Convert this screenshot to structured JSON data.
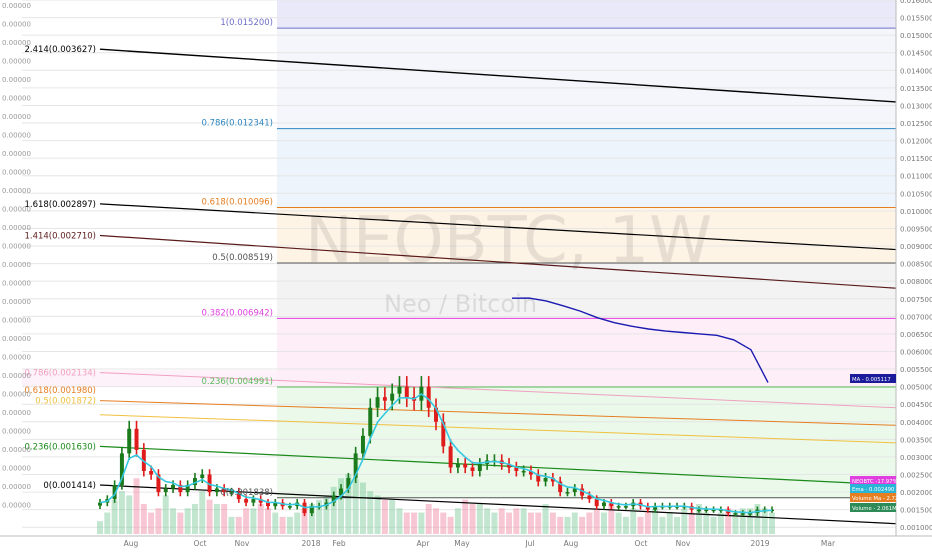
{
  "watermark": {
    "symbol": "NEOBTC, 1W",
    "pair": "Neo / Bitcoin"
  },
  "chart_data": {
    "type": "candlestick",
    "title": "",
    "y_axis_ticks": [
      "0.016000",
      "0.015500",
      "0.015000",
      "0.014500",
      "0.014000",
      "0.013500",
      "0.013000",
      "0.012500",
      "0.012000",
      "0.011500",
      "0.011000",
      "0.010500",
      "0.010000",
      "0.009500",
      "0.009000",
      "0.008500",
      "0.008000",
      "0.007500",
      "0.007000",
      "0.006500",
      "0.006000",
      "0.005500",
      "0.005000",
      "0.004500",
      "0.004000",
      "0.003500",
      "0.003000",
      "0.002500",
      "0.002000",
      "0.001500",
      "0.001000"
    ],
    "left_axis_ticks": [
      "0.00000",
      "0.00000",
      "0.00000",
      "0.00000",
      "0.00000",
      "0.00000",
      "0.00000",
      "0.00000",
      "0.00000",
      "0.00000",
      "0.00000",
      "0.00000",
      "0.00000",
      "0.00000",
      "0.00000",
      "0.00000",
      "0.00000",
      "0.00000",
      "0.00000",
      "0.00000",
      "0.00000",
      "0.00000",
      "0.00000",
      "0.00000",
      "0.00000",
      "0.00000",
      "0.00000",
      "0.00000"
    ],
    "x_axis_ticks": [
      "Aug",
      "Oct",
      "Nov",
      "2018",
      "Feb",
      "Apr",
      "May",
      "Jul",
      "Aug",
      "Oct",
      "Nov",
      "2019",
      "Mar"
    ],
    "fib_right": [
      {
        "label": "1(0.015200)",
        "value": 0.0152,
        "color": "#6e6ec8"
      },
      {
        "label": "0.786(0.012341)",
        "value": 0.012341,
        "color": "#2e86c1"
      },
      {
        "label": "0.618(0.010096)",
        "value": 0.010096,
        "color": "#e67e22"
      },
      {
        "label": "0.5(0.008519)",
        "value": 0.008519,
        "color": "#555555"
      },
      {
        "label": "0.382(0.006942)",
        "value": 0.006942,
        "color": "#e040e0"
      },
      {
        "label": "0.236(0.004991)",
        "value": 0.004991,
        "color": "#5cb85c"
      },
      {
        "label": "0(0.001838)",
        "value": 0.001838,
        "color": "#555555"
      }
    ],
    "fib_left": [
      {
        "label": "2.414(0.003627)",
        "color": "#000000"
      },
      {
        "label": "1.618(0.002897)",
        "color": "#000000"
      },
      {
        "label": "1.414(0.002710)",
        "color": "#5a1a1a"
      },
      {
        "label": "0.786(0.002134)",
        "color": "#f0a0c0"
      },
      {
        "label": "0.618(0.001980)",
        "color": "#e67e22"
      },
      {
        "label": "0.5(0.001872)",
        "color": "#f0c040"
      },
      {
        "label": "0.236(0.001630)",
        "color": "#1a8a1a"
      },
      {
        "label": "0(0.001414)",
        "color": "#000000"
      }
    ],
    "series": [
      {
        "name": "NEOBTC",
        "values": [
          0.0017,
          0.0018,
          0.0022,
          0.0031,
          0.0038,
          0.0032,
          0.0026,
          0.0025,
          0.002,
          0.0021,
          0.0022,
          0.002,
          0.0022,
          0.0024,
          0.0025,
          0.002,
          0.0021,
          0.002,
          0.002,
          0.0018,
          0.0017,
          0.0018,
          0.0017,
          0.0016,
          0.0017,
          0.0016,
          0.0016,
          0.0017,
          0.0014,
          0.0016,
          0.0016,
          0.0017,
          0.0019,
          0.0021,
          0.0024,
          0.0031,
          0.0036,
          0.0044,
          0.0047,
          0.0046,
          0.0048,
          0.005,
          0.0047,
          0.0046,
          0.005,
          0.0044,
          0.004,
          0.0033,
          0.0027,
          0.0028,
          0.0027,
          0.0026,
          0.0028,
          0.0029,
          0.0029,
          0.0028,
          0.0027,
          0.0026,
          0.0026,
          0.0025,
          0.0023,
          0.0024,
          0.0023,
          0.002,
          0.002,
          0.0021,
          0.0019,
          0.0018,
          0.0016,
          0.0017,
          0.0016,
          0.0016,
          0.0016,
          0.0017,
          0.0016,
          0.0015,
          0.0016,
          0.0016,
          0.0016,
          0.0016,
          0.0016,
          0.0015,
          0.0015,
          0.0015,
          0.0015,
          0.0015,
          0.0014,
          0.0014,
          0.0014,
          0.0014,
          0.0015,
          0.0015,
          0.0015
        ]
      },
      {
        "name": "MA",
        "values": [
          0.007517,
          0.00752,
          0.00744,
          0.0073,
          0.00715,
          0.00696,
          0.00682,
          0.00672,
          0.00664,
          0.00658,
          0.00654,
          0.0065,
          0.00646,
          0.00633,
          0.00605,
          0.005117
        ]
      }
    ],
    "price_labels": [
      {
        "name": "NEOBTC",
        "text": "NEOBTC -17.97% - 0.002464",
        "color": "#e040e0"
      },
      {
        "name": "MA",
        "text": "MA - 0.005117",
        "color": "#1a1a9a"
      },
      {
        "name": "EMA",
        "text": "Ema - 0.002490",
        "color": "#29b6d6"
      },
      {
        "name": "Volume MA",
        "text": "Volume Ma - 2.72M",
        "color": "#e67e22"
      },
      {
        "name": "Volume",
        "text": "Volume - 2.061M",
        "color": "#2e8b57"
      }
    ],
    "volume": [
      0.3,
      0.5,
      0.8,
      1.0,
      0.9,
      1.3,
      0.7,
      0.5,
      0.6,
      0.9,
      0.6,
      0.5,
      0.6,
      0.7,
      1.0,
      0.8,
      0.7,
      0.7,
      0.4,
      0.4,
      0.6,
      0.6,
      0.7,
      0.6,
      0.5,
      0.4,
      0.4,
      0.5,
      0.6,
      0.7,
      0.8,
      0.9,
      1.1,
      1.3,
      1.4,
      1.3,
      1.2,
      1.0,
      0.9,
      0.8,
      0.8,
      0.6,
      0.5,
      0.5,
      0.5,
      0.7,
      0.6,
      0.5,
      0.4,
      0.6,
      0.8,
      0.7,
      0.7,
      0.6,
      0.5,
      0.6,
      0.5,
      0.6,
      0.6,
      0.5,
      0.5,
      0.7,
      0.5,
      0.4,
      0.4,
      0.5,
      0.4,
      0.5,
      0.6,
      0.5,
      0.7,
      0.5,
      0.4,
      0.6,
      0.4,
      0.5,
      0.6,
      0.4,
      0.5,
      0.4,
      0.6,
      0.5,
      0.7,
      0.5,
      0.4,
      0.5,
      0.6,
      0.5,
      0.6,
      0.6,
      0.7,
      0.6,
      0.5
    ]
  }
}
